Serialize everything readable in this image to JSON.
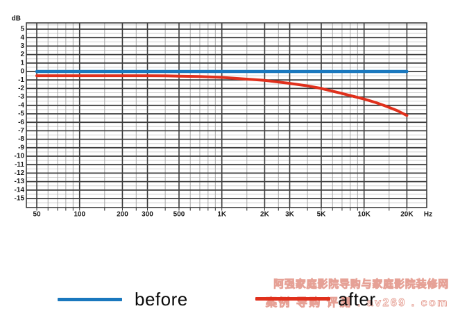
{
  "chart_data": {
    "type": "line",
    "title": "",
    "xlabel": "Hz",
    "ylabel": "dB",
    "x_scale": "log",
    "grid": true,
    "legend_position": "bottom",
    "x_range_hz": [
      50,
      20000
    ],
    "ylim": [
      -16.3,
      5.7
    ],
    "y_tick_step": 1,
    "y_tick_labels": [
      "5",
      "4",
      "3",
      "2",
      "1",
      "0",
      "-1",
      "-2",
      "-3",
      "-4",
      "-5",
      "-6",
      "-7",
      "-8",
      "-9",
      "-10",
      "-11",
      "-12",
      "-13",
      "-14",
      "-15"
    ],
    "y_tick_values": [
      5,
      4,
      3,
      2,
      1,
      0,
      -1,
      -2,
      -3,
      -4,
      -5,
      -6,
      -7,
      -8,
      -9,
      -10,
      -11,
      -12,
      -13,
      -14,
      -15
    ],
    "x_ticks": [
      {
        "value": 50,
        "label": "50"
      },
      {
        "value": 100,
        "label": "100"
      },
      {
        "value": 200,
        "label": "200"
      },
      {
        "value": 300,
        "label": "300"
      },
      {
        "value": 500,
        "label": "500"
      },
      {
        "value": 1000,
        "label": "1K"
      },
      {
        "value": 2000,
        "label": "2K"
      },
      {
        "value": 3000,
        "label": "3K"
      },
      {
        "value": 5000,
        "label": "5K"
      },
      {
        "value": 10000,
        "label": "10K"
      },
      {
        "value": 20000,
        "label": "20K"
      }
    ],
    "x_minor_mantissas": [
      1,
      1.5,
      2,
      2.5,
      3,
      4,
      5,
      6,
      7,
      8,
      9
    ],
    "grid_major_color": "#3d3d3d",
    "grid_minor_h_color": "#cfcfcf",
    "grid_minor_v_color": "#a8a8a8",
    "axis_text_color": "#1a1a1a",
    "series": [
      {
        "name": "before",
        "color": "#1a78be",
        "width": 4.5,
        "points": [
          [
            50,
            0
          ],
          [
            20000,
            0
          ]
        ]
      },
      {
        "name": "after",
        "color": "#e0301c",
        "width": 4,
        "points": [
          [
            50,
            -0.5
          ],
          [
            100,
            -0.5
          ],
          [
            150,
            -0.5
          ],
          [
            200,
            -0.5
          ],
          [
            300,
            -0.5
          ],
          [
            400,
            -0.52
          ],
          [
            500,
            -0.55
          ],
          [
            700,
            -0.6
          ],
          [
            1000,
            -0.7
          ],
          [
            1500,
            -0.9
          ],
          [
            2000,
            -1.05
          ],
          [
            3000,
            -1.4
          ],
          [
            4000,
            -1.7
          ],
          [
            5000,
            -2.0
          ],
          [
            7000,
            -2.6
          ],
          [
            8500,
            -2.95
          ],
          [
            10000,
            -3.25
          ],
          [
            12000,
            -3.65
          ],
          [
            14000,
            -4.05
          ],
          [
            17000,
            -4.6
          ],
          [
            20000,
            -5.2
          ]
        ]
      }
    ]
  },
  "legend": {
    "items": [
      {
        "label": "before",
        "color": "#1a78be"
      },
      {
        "label": "after",
        "color": "#e0301c"
      }
    ]
  },
  "watermark": {
    "line1": "阿强家庭影院导购与家庭影院装修网",
    "line2": "案例 导购 评测 . av269 . com",
    "color": "#e8a296"
  }
}
